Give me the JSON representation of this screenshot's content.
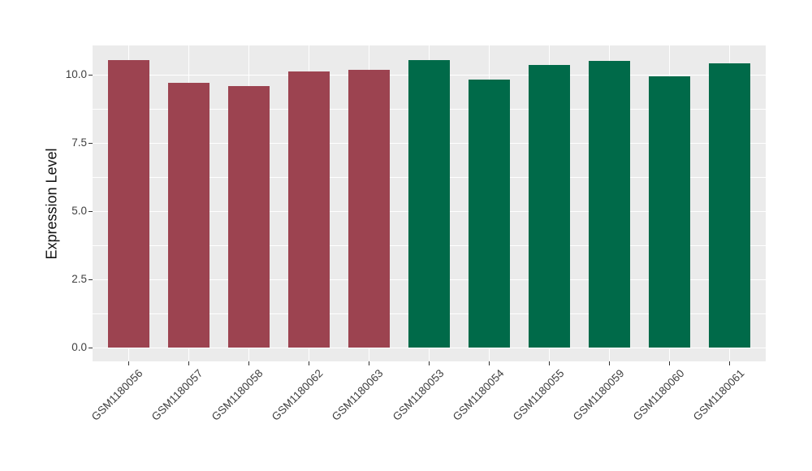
{
  "chart_data": {
    "type": "bar",
    "title": "",
    "xlabel": "",
    "ylabel": "Expression Level",
    "categories": [
      "GSM1180056",
      "GSM1180057",
      "GSM1180058",
      "GSM1180062",
      "GSM1180063",
      "GSM1180053",
      "GSM1180054",
      "GSM1180055",
      "GSM1180059",
      "GSM1180060",
      "GSM1180061"
    ],
    "values": [
      10.54,
      9.71,
      9.58,
      10.12,
      10.18,
      10.55,
      9.82,
      10.37,
      10.51,
      9.96,
      10.43
    ],
    "groups": [
      "group1",
      "group1",
      "group1",
      "group1",
      "group1",
      "group2",
      "group2",
      "group2",
      "group2",
      "group2",
      "group2"
    ],
    "group_colors": {
      "group1": "#9C4350",
      "group2": "#006A49"
    },
    "ylim": [
      -0.5,
      11.08
    ],
    "yticks": {
      "values": [
        0,
        2.5,
        5,
        7.5,
        10
      ],
      "labels": [
        "0.0",
        "2.5",
        "5.0",
        "7.5",
        "10.0"
      ]
    },
    "y_minor_breaks": [
      1.25,
      3.75,
      6.25,
      8.75
    ],
    "bar_width_ratio": 0.7,
    "x_label_rotation_deg": 45,
    "legend": "none",
    "grid": true,
    "panel_bg": "#EBEBEB",
    "grid_color": "#FFFFFF",
    "tick_color": "#333333",
    "tick_label_color": "#404040"
  }
}
